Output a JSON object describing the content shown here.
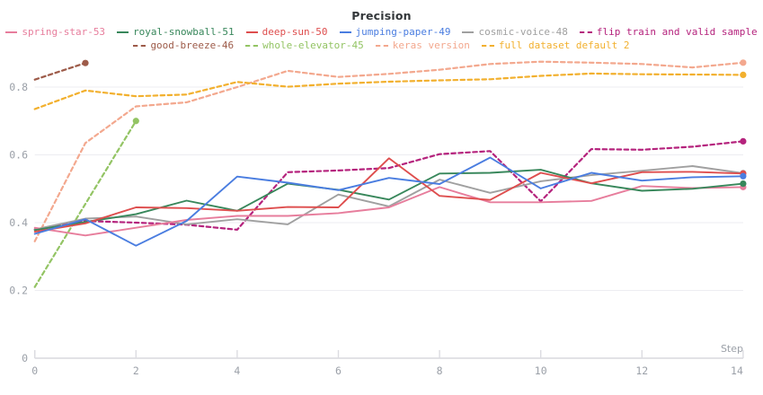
{
  "header": {
    "title": "Precision"
  },
  "axes": {
    "x_label": "Step",
    "x_ticks": [
      0,
      2,
      4,
      6,
      8,
      10,
      12,
      14
    ],
    "y_ticks": [
      0,
      0.2,
      0.4,
      0.6,
      0.8
    ]
  },
  "colors": {
    "grid": "#ededf1",
    "axis_line": "#d9d9de",
    "tick_mark": "#dcdce1",
    "tick_text": "#9ba0a8",
    "title_text": "#33373a"
  },
  "chart_data": {
    "type": "line",
    "title": "Precision",
    "xlabel": "Step",
    "ylabel": "",
    "xlim": [
      0,
      14
    ],
    "ylim": [
      0,
      0.95
    ],
    "grid": "horizontal-only",
    "legend_position": "top",
    "x": [
      0,
      1,
      2,
      3,
      4,
      5,
      6,
      7,
      8,
      9,
      10,
      11,
      12,
      13,
      14
    ],
    "series": [
      {
        "label": "spring-star-53",
        "color": "#e77d9c",
        "dashed": false,
        "end_dot": true,
        "values": [
          0.385,
          0.362,
          0.385,
          0.408,
          0.42,
          0.42,
          0.428,
          0.445,
          0.505,
          0.46,
          0.46,
          0.464,
          0.508,
          0.502,
          0.505
        ]
      },
      {
        "label": "royal-snowball-51",
        "color": "#38875b",
        "dashed": false,
        "end_dot": true,
        "values": [
          0.378,
          0.402,
          0.425,
          0.465,
          0.435,
          0.515,
          0.497,
          0.468,
          0.545,
          0.547,
          0.556,
          0.516,
          0.494,
          0.5,
          0.515
        ]
      },
      {
        "label": "deep-sun-50",
        "color": "#de4e4e",
        "dashed": false,
        "end_dot": true,
        "values": [
          0.373,
          0.398,
          0.445,
          0.443,
          0.435,
          0.446,
          0.445,
          0.59,
          0.479,
          0.467,
          0.547,
          0.516,
          0.549,
          0.55,
          0.545
        ]
      },
      {
        "label": "jumping-paper-49",
        "color": "#4a7de0",
        "dashed": false,
        "end_dot": true,
        "values": [
          0.367,
          0.41,
          0.332,
          0.405,
          0.536,
          0.518,
          0.496,
          0.532,
          0.514,
          0.592,
          0.501,
          0.547,
          0.524,
          0.534,
          0.537
        ]
      },
      {
        "label": "cosmic-voice-48",
        "color": "#a0a0a0",
        "dashed": false,
        "end_dot": true,
        "values": [
          0.38,
          0.412,
          0.418,
          0.395,
          0.41,
          0.395,
          0.483,
          0.448,
          0.527,
          0.488,
          0.522,
          0.54,
          0.553,
          0.567,
          0.546
        ]
      },
      {
        "label": "flip train and valid sample",
        "color": "#b5237d",
        "dashed": true,
        "end_dot": true,
        "values": [
          0.38,
          0.405,
          0.4,
          0.394,
          0.379,
          0.549,
          0.554,
          0.561,
          0.602,
          0.611,
          0.463,
          0.617,
          0.615,
          0.624,
          0.64
        ]
      },
      {
        "label": "good-breeze-46",
        "color": "#9d5b49",
        "dashed": true,
        "end_dot": true,
        "values": [
          0.822,
          0.871
        ]
      },
      {
        "label": "whole-elevator-45",
        "color": "#93c464",
        "dashed": true,
        "end_dot": true,
        "values": [
          0.21,
          0.455,
          0.7
        ]
      },
      {
        "label": "keras version",
        "color": "#f3a88e",
        "dashed": true,
        "end_dot": true,
        "values": [
          0.345,
          0.635,
          0.743,
          0.755,
          0.8,
          0.848,
          0.83,
          0.839,
          0.851,
          0.868,
          0.875,
          0.872,
          0.868,
          0.858,
          0.872
        ]
      },
      {
        "label": "full dataset default 2",
        "color": "#f2b02e",
        "dashed": true,
        "end_dot": true,
        "values": [
          0.735,
          0.79,
          0.773,
          0.778,
          0.815,
          0.801,
          0.81,
          0.816,
          0.82,
          0.823,
          0.833,
          0.84,
          0.838,
          0.837,
          0.836
        ]
      }
    ],
    "legend_row_split": 6
  }
}
